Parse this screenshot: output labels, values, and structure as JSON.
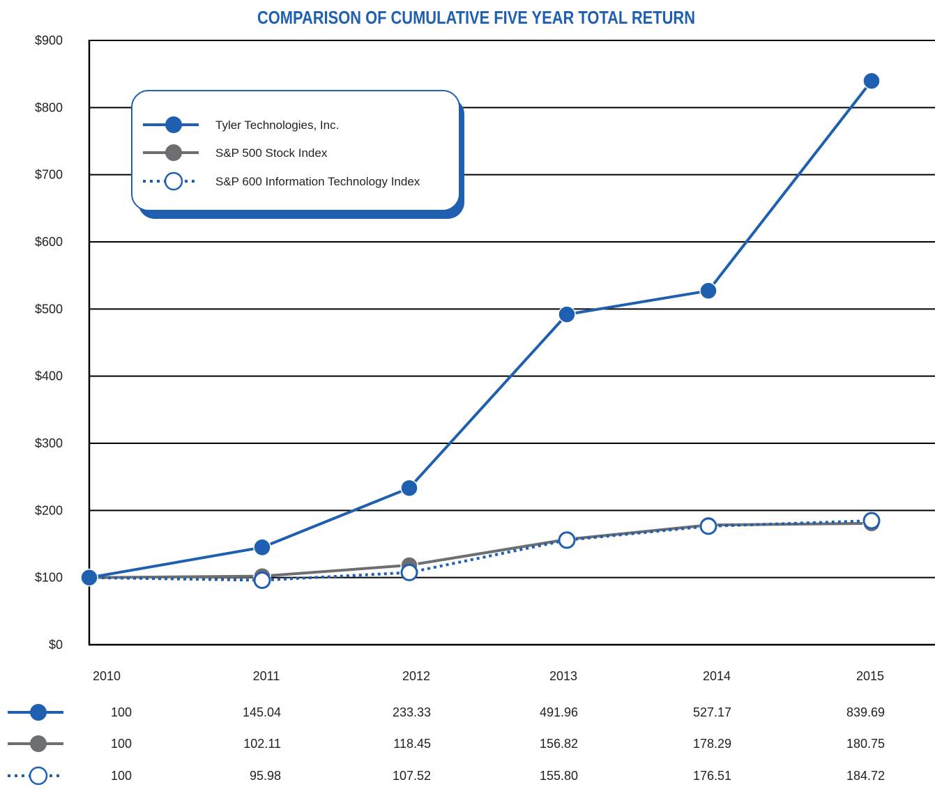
{
  "chart_data": {
    "type": "line",
    "title": "COMPARISON OF CUMULATIVE FIVE YEAR TOTAL RETURN",
    "x": [
      "2010",
      "2011",
      "2012",
      "2013",
      "2014",
      "2015"
    ],
    "ylim": [
      0,
      900
    ],
    "yticks": [
      "$0",
      "$100",
      "$200",
      "$300",
      "$400",
      "$500",
      "$600",
      "$700",
      "$800",
      "$900"
    ],
    "grid": true,
    "legend_position": "top-left",
    "series": [
      {
        "name": "Tyler Technologies, Inc.",
        "color": "#1f5fb0",
        "line_style": "solid",
        "marker": "filled",
        "values": [
          100,
          145.04,
          233.33,
          491.96,
          527.17,
          839.69
        ],
        "labels": [
          "100",
          "145.04",
          "233.33",
          "491.96",
          "527.17",
          "839.69"
        ]
      },
      {
        "name": "S&P 500 Stock Index",
        "color": "#6d6e71",
        "line_style": "solid",
        "marker": "filled",
        "values": [
          100,
          102.11,
          118.45,
          156.82,
          178.29,
          180.75
        ],
        "labels": [
          "100",
          "102.11",
          "118.45",
          "156.82",
          "178.29",
          "180.75"
        ]
      },
      {
        "name": "S&P 600 Information Technology Index",
        "color": "#1f5fb0",
        "line_style": "dotted",
        "marker": "hollow",
        "values": [
          100,
          95.98,
          107.52,
          155.8,
          176.51,
          184.72
        ],
        "labels": [
          "100",
          "95.98",
          "107.52",
          "155.80",
          "176.51",
          "184.72"
        ]
      }
    ]
  }
}
